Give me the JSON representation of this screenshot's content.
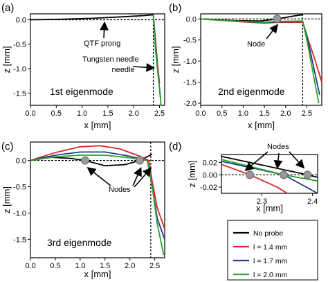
{
  "chart_data": [
    {
      "panel": "(a)",
      "type": "line",
      "title": "",
      "xlabel": "x [mm]",
      "ylabel": "z [mm]",
      "xlim": [
        0.0,
        2.6
      ],
      "ylim": [
        -1.75,
        0.12
      ],
      "xticks": [
        "0.0",
        "0.5",
        "1.0",
        "1.5",
        "2.0",
        "2.5"
      ],
      "yticks": [
        "0.0",
        "-0.5",
        "-1.0",
        "-1.5"
      ],
      "annotations": [
        "QTF prong",
        "Tungsten needle"
      ],
      "mode_label": "1st eigenmode",
      "series": [
        {
          "name": "No probe",
          "color": "#000000",
          "points": [
            [
              0.0,
              0.0
            ],
            [
              0.6,
              0.01
            ],
            [
              1.2,
              0.03
            ],
            [
              1.8,
              0.06
            ],
            [
              2.2,
              0.085
            ],
            [
              2.38,
              0.1
            ]
          ]
        },
        {
          "name": "l = 1.4 mm",
          "color": "#d62728",
          "points": [
            [
              2.38,
              0.1
            ],
            [
              2.42,
              -0.4
            ],
            [
              2.46,
              -0.9
            ],
            [
              2.5,
              -1.3
            ]
          ]
        },
        {
          "name": "l = 1.7 mm",
          "color": "#1f3c88",
          "points": [
            [
              2.38,
              0.1
            ],
            [
              2.42,
              -0.5
            ],
            [
              2.46,
              -1.0
            ],
            [
              2.52,
              -1.6
            ]
          ]
        },
        {
          "name": "l = 2.0 mm",
          "color": "#2ca02c",
          "points": [
            [
              2.38,
              0.1
            ],
            [
              2.42,
              -0.6
            ],
            [
              2.47,
              -1.1
            ],
            [
              2.53,
              -1.75
            ]
          ]
        }
      ]
    },
    {
      "panel": "(b)",
      "type": "line",
      "title": "",
      "xlabel": "x [mm]",
      "ylabel": "z [mm]",
      "xlim": [
        0.0,
        2.85
      ],
      "ylim": [
        -2.05,
        0.12
      ],
      "xticks": [
        "0.0",
        "0.5",
        "1.0",
        "1.5",
        "2.0",
        "2.5"
      ],
      "yticks": [
        "0.0",
        "-0.5",
        "-1.0",
        "-1.5",
        "-2.0"
      ],
      "annotations": [
        "Node"
      ],
      "mode_label": "2nd eigenmode",
      "nodes": [
        [
          1.8,
          0.0
        ]
      ],
      "series": [
        {
          "name": "No probe",
          "color": "#000000",
          "points": [
            [
              0.0,
              0.0
            ],
            [
              0.8,
              -0.04
            ],
            [
              1.4,
              -0.05
            ],
            [
              1.8,
              0.0
            ],
            [
              2.2,
              0.07
            ],
            [
              2.4,
              0.1
            ]
          ]
        },
        {
          "name": "l = 1.4 mm",
          "color": "#d62728",
          "points": [
            [
              0.0,
              0.0
            ],
            [
              0.8,
              -0.06
            ],
            [
              1.5,
              -0.1
            ],
            [
              1.8,
              -0.08
            ],
            [
              2.4,
              -0.08
            ],
            [
              2.5,
              -0.4
            ],
            [
              2.7,
              -1.0
            ],
            [
              2.85,
              -1.5
            ]
          ]
        },
        {
          "name": "l = 1.7 mm",
          "color": "#1f3c88",
          "points": [
            [
              0.0,
              0.0
            ],
            [
              0.8,
              -0.05
            ],
            [
              1.5,
              -0.09
            ],
            [
              1.8,
              -0.07
            ],
            [
              2.4,
              -0.06
            ],
            [
              2.5,
              -0.4
            ],
            [
              2.65,
              -1.1
            ],
            [
              2.8,
              -1.8
            ]
          ]
        },
        {
          "name": "l = 2.0 mm",
          "color": "#2ca02c",
          "points": [
            [
              0.0,
              0.0
            ],
            [
              0.8,
              -0.05
            ],
            [
              1.5,
              -0.08
            ],
            [
              1.8,
              -0.06
            ],
            [
              2.4,
              -0.05
            ],
            [
              2.5,
              -0.5
            ],
            [
              2.65,
              -1.3
            ],
            [
              2.78,
              -2.0
            ]
          ]
        }
      ]
    },
    {
      "panel": "(c)",
      "type": "line",
      "title": "",
      "xlabel": "x [mm]",
      "ylabel": "z [mm]",
      "xlim": [
        0.0,
        2.7
      ],
      "ylim": [
        -1.85,
        0.35
      ],
      "xticks": [
        "0.0",
        "0.5",
        "1.0",
        "1.5",
        "2.0",
        "2.5"
      ],
      "yticks": [
        "0.0",
        "-0.5",
        "-1.0",
        "-1.5"
      ],
      "annotations": [
        "Nodes"
      ],
      "mode_label": "3rd eigenmode",
      "nodes": [
        [
          1.1,
          0.0
        ],
        [
          2.2,
          0.0
        ]
      ],
      "series": [
        {
          "name": "No probe",
          "color": "#000000",
          "points": [
            [
              0.0,
              0.0
            ],
            [
              0.4,
              0.06
            ],
            [
              0.8,
              0.04
            ],
            [
              1.1,
              0.0
            ],
            [
              1.5,
              -0.1
            ],
            [
              1.9,
              -0.08
            ],
            [
              2.2,
              0.0
            ],
            [
              2.45,
              0.12
            ]
          ]
        },
        {
          "name": "l = 1.4 mm",
          "color": "#d62728",
          "points": [
            [
              0.0,
              0.0
            ],
            [
              0.5,
              0.15
            ],
            [
              1.0,
              0.26
            ],
            [
              1.4,
              0.28
            ],
            [
              1.8,
              0.22
            ],
            [
              2.2,
              0.08
            ],
            [
              2.38,
              0.0
            ],
            [
              2.45,
              -0.4
            ],
            [
              2.55,
              -0.9
            ],
            [
              2.7,
              -1.3
            ]
          ]
        },
        {
          "name": "l = 1.7 mm",
          "color": "#1f3c88",
          "points": [
            [
              0.0,
              0.0
            ],
            [
              0.5,
              0.1
            ],
            [
              1.0,
              0.16
            ],
            [
              1.5,
              0.16
            ],
            [
              2.0,
              0.08
            ],
            [
              2.35,
              0.0
            ],
            [
              2.45,
              -0.5
            ],
            [
              2.55,
              -1.1
            ],
            [
              2.7,
              -1.5
            ]
          ]
        },
        {
          "name": "l = 2.0 mm",
          "color": "#2ca02c",
          "points": [
            [
              0.0,
              0.0
            ],
            [
              0.5,
              0.07
            ],
            [
              1.0,
              0.1
            ],
            [
              1.5,
              0.1
            ],
            [
              2.0,
              0.05
            ],
            [
              2.35,
              0.0
            ],
            [
              2.45,
              -0.5
            ],
            [
              2.55,
              -1.2
            ],
            [
              2.68,
              -1.8
            ]
          ]
        }
      ]
    },
    {
      "panel": "(d)",
      "type": "line",
      "title": "",
      "xlabel": "x [mm]",
      "ylabel": "z [mm]",
      "xlim": [
        2.22,
        2.41
      ],
      "ylim": [
        -0.03,
        0.033
      ],
      "xticks": [
        "2.3",
        "2.4"
      ],
      "yticks": [
        "0.02",
        "0.00",
        "-0.02"
      ],
      "annotations": [
        "Nodes"
      ],
      "nodes": [
        [
          2.276,
          0.0
        ],
        [
          2.343,
          0.0
        ],
        [
          2.39,
          0.0
        ]
      ],
      "series": [
        {
          "name": "No probe",
          "color": "#000000",
          "points": [
            [
              2.22,
              0.03
            ],
            [
              2.39,
              0.0
            ],
            [
              2.41,
              -0.004
            ]
          ]
        },
        {
          "name": "l = 1.4 mm",
          "color": "#d62728",
          "points": [
            [
              2.22,
              0.017
            ],
            [
              2.276,
              0.0
            ],
            [
              2.33,
              -0.02
            ],
            [
              2.35,
              -0.03
            ]
          ]
        },
        {
          "name": "l = 1.7 mm",
          "color": "#1f3c88",
          "points": [
            [
              2.22,
              0.022
            ],
            [
              2.343,
              0.0
            ],
            [
              2.41,
              -0.03
            ]
          ]
        },
        {
          "name": "l = 2.0 mm",
          "color": "#2ca02c",
          "points": [
            [
              2.22,
              0.025
            ],
            [
              2.343,
              0.0
            ],
            [
              2.41,
              -0.01
            ]
          ]
        }
      ]
    }
  ],
  "legend": {
    "placement": "bottom-right",
    "entries": [
      {
        "label": "No probe",
        "color": "#000000"
      },
      {
        "label": "l = 1.4 mm",
        "color": "#d62728"
      },
      {
        "label": "l = 1.7 mm",
        "color": "#1f3c88"
      },
      {
        "label": "l = 2.0 mm",
        "color": "#2ca02c"
      }
    ]
  }
}
